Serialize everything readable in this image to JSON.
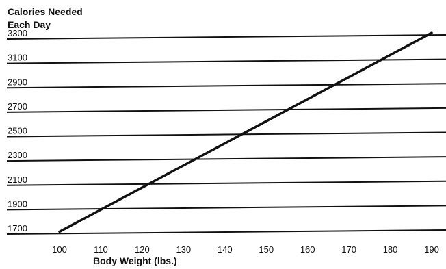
{
  "chart_data": {
    "type": "line",
    "title": "",
    "ylabel_lines": [
      "Calories Needed",
      "Each Day"
    ],
    "xlabel": "Body Weight (lbs.)",
    "x_ticks": [
      "100",
      "110",
      "120",
      "130",
      "140",
      "150",
      "160",
      "170",
      "180",
      "190"
    ],
    "y_ticks": [
      "1700",
      "1900",
      "2100",
      "2300",
      "2500",
      "2700",
      "2900",
      "3100",
      "3300"
    ],
    "xlim": [
      100,
      190
    ],
    "ylim": [
      1700,
      3300
    ],
    "grid": "horizontal",
    "series": [
      {
        "x": [
          100,
          190
        ],
        "y": [
          1720,
          3350
        ]
      }
    ],
    "line_color": "#111111"
  }
}
